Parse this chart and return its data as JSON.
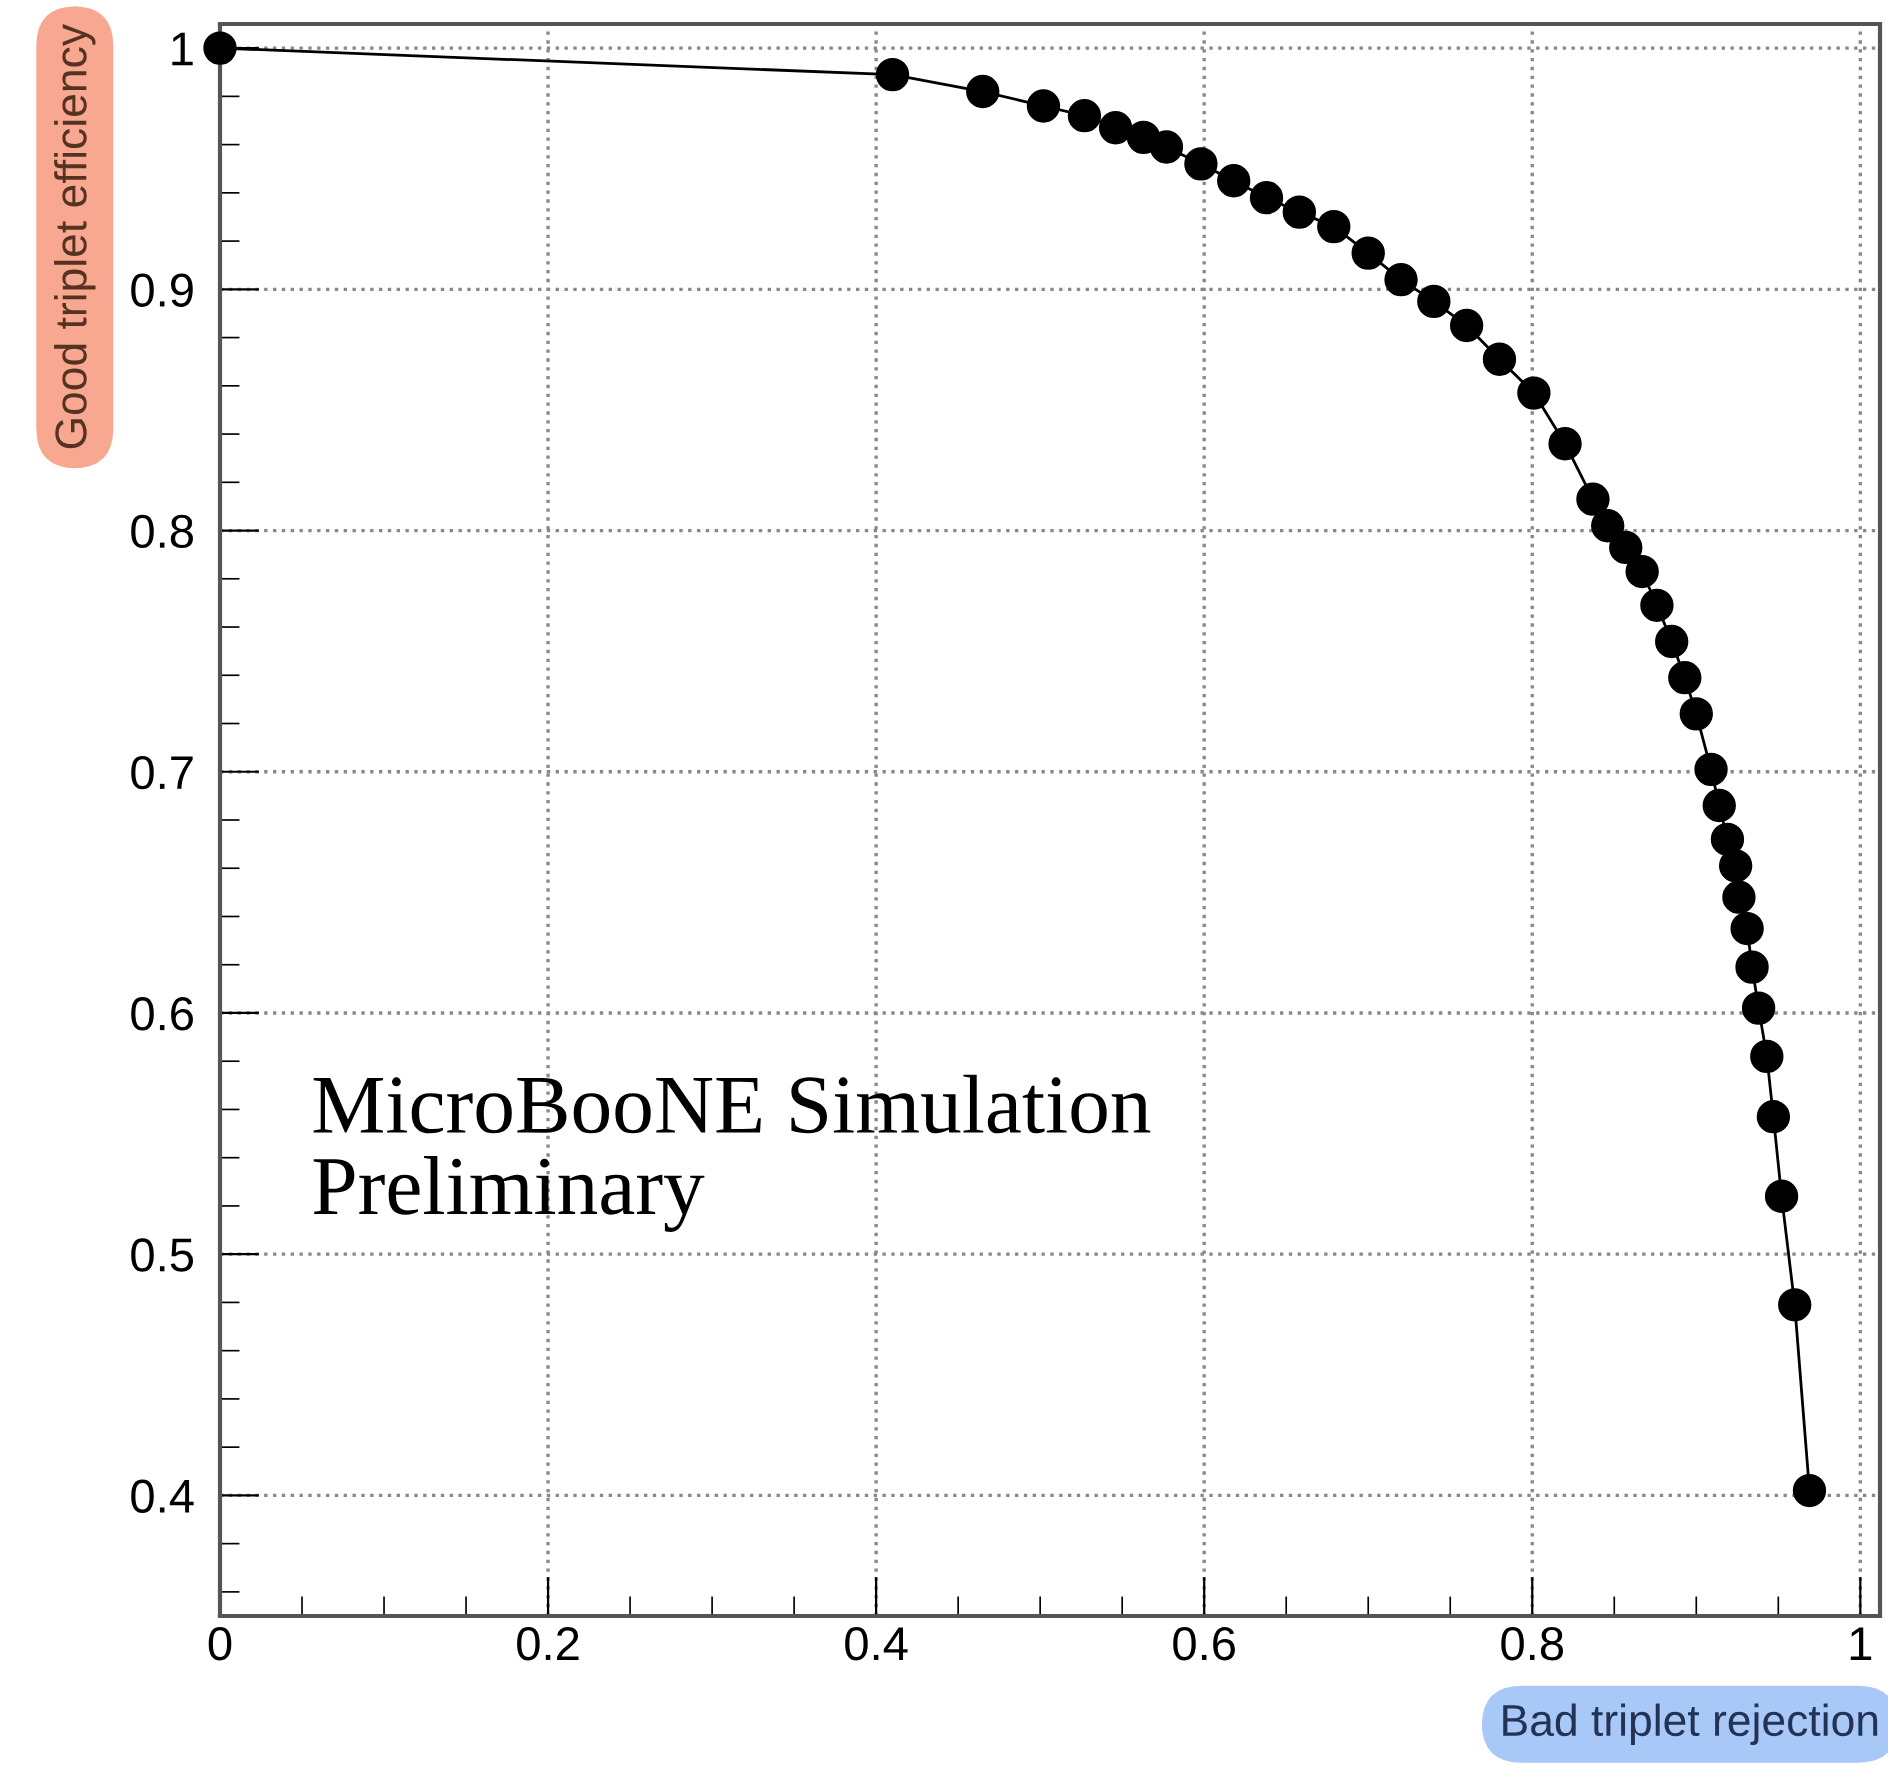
{
  "chart_data": {
    "type": "line",
    "xlabel": "Bad triplet rejection",
    "ylabel": "Good triplet efficiency",
    "annotations": [
      "MicroBooNE Simulation\nPreliminary"
    ],
    "x": [
      0,
      0.41,
      0.465,
      0.502,
      0.527,
      0.546,
      0.563,
      0.577,
      0.598,
      0.618,
      0.638,
      0.658,
      0.679,
      0.7,
      0.72,
      0.74,
      0.76,
      0.78,
      0.801,
      0.82,
      0.837,
      0.846,
      0.857,
      0.867,
      0.876,
      0.885,
      0.893,
      0.9,
      0.909,
      0.914,
      0.919,
      0.924,
      0.926,
      0.931,
      0.934,
      0.938,
      0.943,
      0.947,
      0.952,
      0.96,
      0.969
    ],
    "series": [
      {
        "color": "#000000",
        "values": [
          1,
          0.989,
          0.982,
          0.976,
          0.972,
          0.967,
          0.963,
          0.959,
          0.952,
          0.945,
          0.938,
          0.932,
          0.926,
          0.915,
          0.904,
          0.895,
          0.885,
          0.871,
          0.857,
          0.836,
          0.813,
          0.802,
          0.793,
          0.783,
          0.769,
          0.754,
          0.739,
          0.724,
          0.701,
          0.686,
          0.672,
          0.661,
          0.648,
          0.635,
          0.619,
          0.602,
          0.582,
          0.557,
          0.524,
          0.479,
          0.402
        ]
      }
    ],
    "marker": "circle",
    "line_style": "solid",
    "grid": true,
    "xlim": [
      0,
      1.012
    ],
    "ylim": [
      0.35,
      1.01
    ],
    "xticks": [
      0,
      0.2,
      0.4,
      0.6,
      0.8,
      1
    ],
    "yticks": [
      0.4,
      0.5,
      0.6,
      0.7,
      0.8,
      0.9,
      1
    ]
  }
}
